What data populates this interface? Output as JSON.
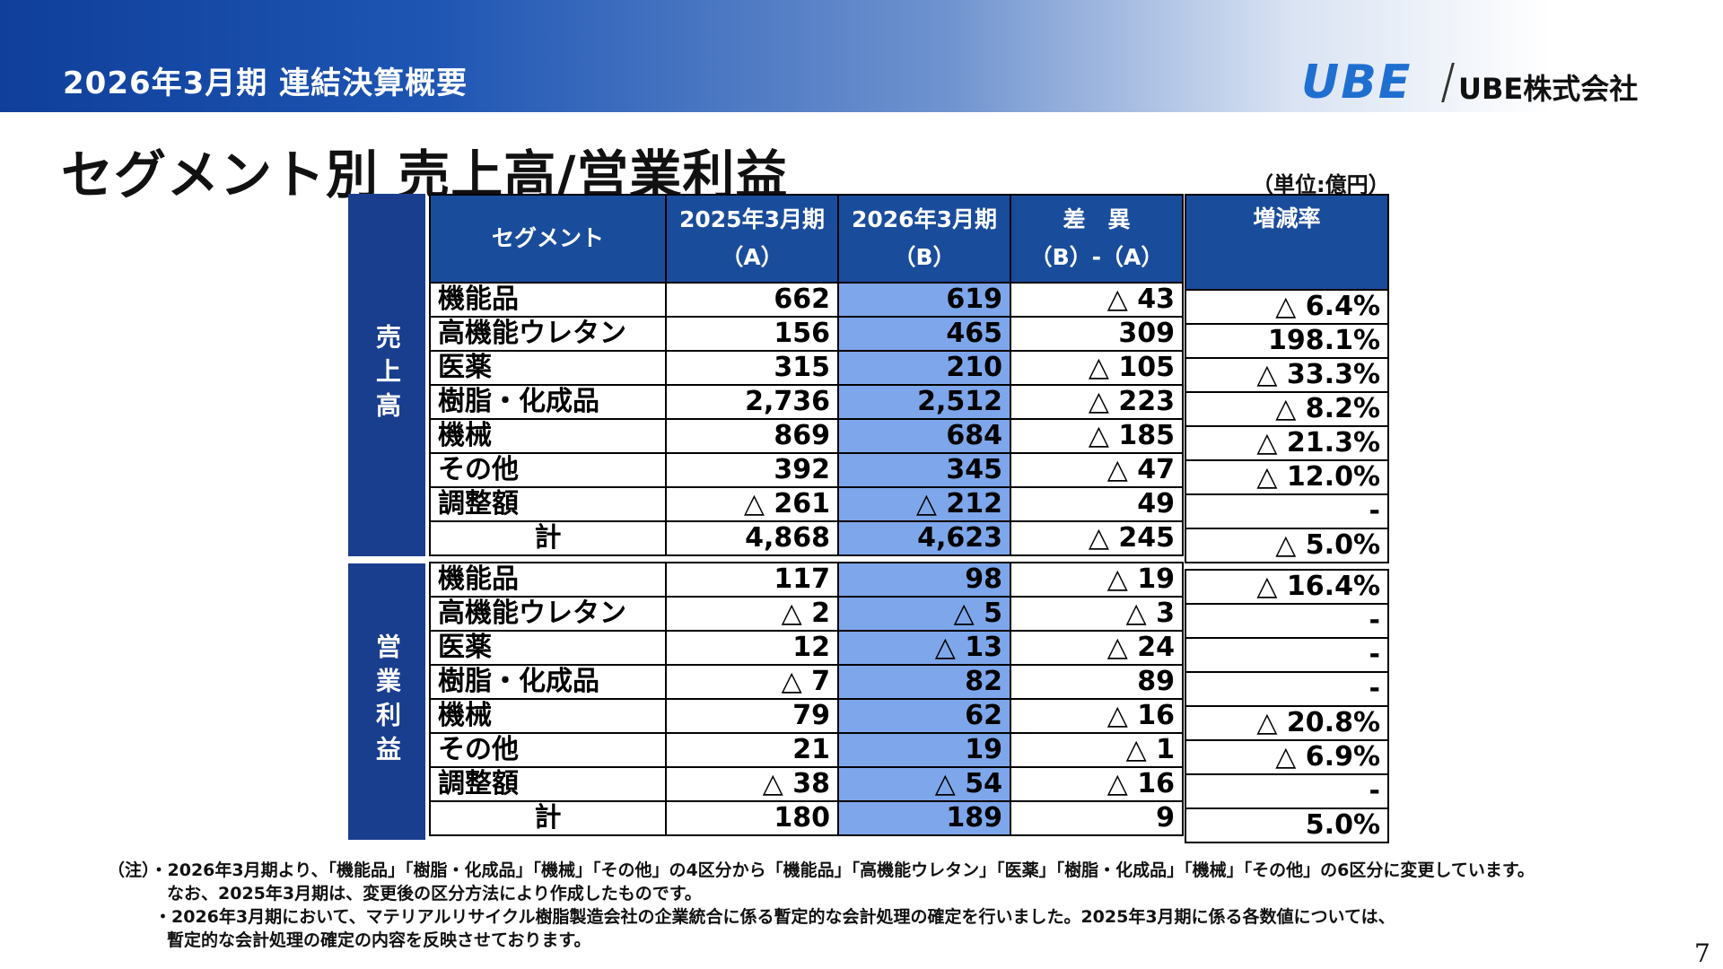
{
  "header": {
    "title": "2026年3月期 連結決算概要",
    "logo_mark": "UBE",
    "company": "UBE株式会社"
  },
  "page_title": "セグメント別 売上高/営業利益",
  "unit": "（単位:億円）",
  "columns": {
    "segment": "セグメント",
    "fy2025_top": "2025年3月期",
    "fy2025_bot": "（A）",
    "fy2026_top": "2026年3月期",
    "fy2026_bot": "（B）",
    "diff_top": "差　異",
    "diff_bot": "（B）-（A）",
    "rate": "増減率"
  },
  "sections": {
    "sales_label": "売上高",
    "profit_label": "営業利益"
  },
  "sales_rows": [
    {
      "segment": "機能品",
      "a": "662",
      "b": "619",
      "diff": "△ 43",
      "rate": "△ 6.4%"
    },
    {
      "segment": "高機能ウレタン",
      "a": "156",
      "b": "465",
      "diff": "309",
      "rate": "198.1%"
    },
    {
      "segment": "医薬",
      "a": "315",
      "b": "210",
      "diff": "△ 105",
      "rate": "△ 33.3%"
    },
    {
      "segment": "樹脂・化成品",
      "a": "2,736",
      "b": "2,512",
      "diff": "△ 223",
      "rate": "△ 8.2%"
    },
    {
      "segment": "機械",
      "a": "869",
      "b": "684",
      "diff": "△ 185",
      "rate": "△ 21.3%"
    },
    {
      "segment": "その他",
      "a": "392",
      "b": "345",
      "diff": "△ 47",
      "rate": "△ 12.0%"
    },
    {
      "segment": "調整額",
      "a": "△ 261",
      "b": "△ 212",
      "diff": "49",
      "rate": "-"
    },
    {
      "segment": "計",
      "a": "4,868",
      "b": "4,623",
      "diff": "△ 245",
      "rate": "△ 5.0%"
    }
  ],
  "profit_rows": [
    {
      "segment": "機能品",
      "a": "117",
      "b": "98",
      "diff": "△ 19",
      "rate": "△ 16.4%"
    },
    {
      "segment": "高機能ウレタン",
      "a": "△ 2",
      "b": "△ 5",
      "diff": "△ 3",
      "rate": "-"
    },
    {
      "segment": "医薬",
      "a": "12",
      "b": "△ 13",
      "diff": "△ 24",
      "rate": "-"
    },
    {
      "segment": "樹脂・化成品",
      "a": "△ 7",
      "b": "82",
      "diff": "89",
      "rate": "-"
    },
    {
      "segment": "機械",
      "a": "79",
      "b": "62",
      "diff": "△ 16",
      "rate": "△ 20.8%"
    },
    {
      "segment": "その他",
      "a": "21",
      "b": "19",
      "diff": "△ 1",
      "rate": "△ 6.9%"
    },
    {
      "segment": "調整額",
      "a": "△ 38",
      "b": "△ 54",
      "diff": "△ 16",
      "rate": "-"
    },
    {
      "segment": "計",
      "a": "180",
      "b": "189",
      "diff": "9",
      "rate": "5.0%"
    }
  ],
  "notes": [
    "（注）・2026年3月期より、「機能品」「樹脂・化成品」「機械」「その他」の4区分から「機能品」「高機能ウレタン」「医薬」「樹脂・化成品」「機械」「その他」の6区分に変更しています。",
    "なお、2025年3月期は、変更後の区分方法により作成したものです。",
    "・2026年3月期において、マテリアルリサイクル樹脂製造会社の企業統合に係る暫定的な会計処理の確定を行いました。2025年3月期に係る各数値については、",
    "暫定的な会計処理の確定の内容を反映させております。"
  ],
  "page_number": "7",
  "colors": {
    "header_navy": "#1a4c9c",
    "side_navy": "#1a3e8e",
    "highlight_column": "#7ea6ea",
    "logo_blue": "#1f6fd1"
  }
}
